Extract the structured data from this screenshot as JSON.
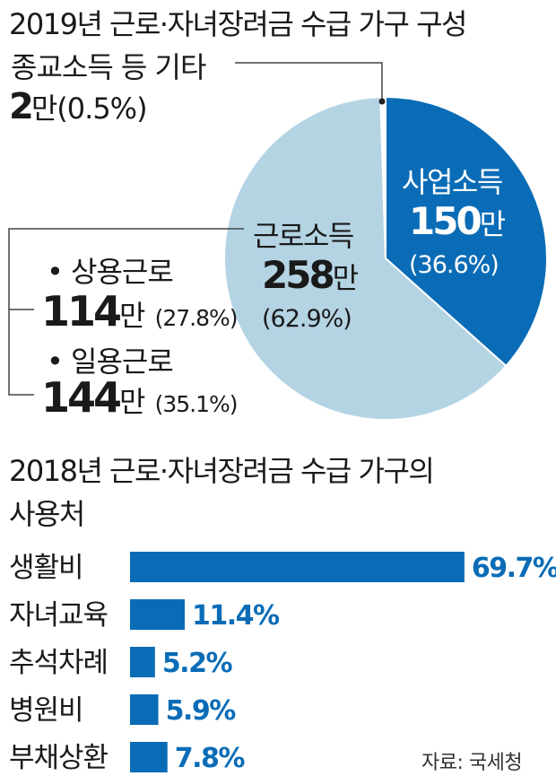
{
  "colors": {
    "dark": "#0a6cb6",
    "light": "#b4d4e4",
    "line": "#444444",
    "white": "#ffffff"
  },
  "pie": {
    "title": "2019년 근로·자녀장려금 수급 가구 구성",
    "other": {
      "label": "종교소득 등 기타",
      "value": "2",
      "unit": "만",
      "pct": "(0.5%)"
    },
    "business": {
      "label": "사업소득",
      "value": "150",
      "unit": "만",
      "pct": "(36.6%)"
    },
    "labor": {
      "label": "근로소득",
      "value": "258",
      "unit": "만",
      "pct": "(62.9%)"
    },
    "regular": {
      "label": "• 상용근로",
      "value": "114",
      "unit": "만",
      "pct": "(27.8%)"
    },
    "daily": {
      "label": "• 일용근로",
      "value": "144",
      "unit": "만",
      "pct": "(35.1%)"
    }
  },
  "bars": {
    "title_line1": "2018년 근로·자녀장려금 수급 가구의",
    "title_line2": "사용처",
    "source": "자료: 국세청"
  },
  "chart_data": [
    {
      "type": "pie",
      "title": "2019년 근로·자녀장려금 수급 가구 구성",
      "slices": [
        {
          "label": "사업소득",
          "value": 150,
          "percent": 36.6
        },
        {
          "label": "근로소득",
          "value": 258,
          "percent": 62.9
        },
        {
          "label": "종교소득 등 기타",
          "value": 2,
          "percent": 0.5
        }
      ],
      "unit": "만"
    },
    {
      "type": "bar",
      "orientation": "horizontal",
      "title": "2018년 근로·자녀장려금 수급 가구의 사용처",
      "categories": [
        "생활비",
        "자녀교육",
        "추석차례",
        "병원비",
        "부채상환"
      ],
      "values": [
        69.7,
        11.4,
        5.2,
        5.9,
        7.8
      ],
      "value_labels": [
        "69.7%",
        "11.4%",
        "5.2%",
        "5.9%",
        "7.8%"
      ],
      "unit": "%"
    }
  ]
}
